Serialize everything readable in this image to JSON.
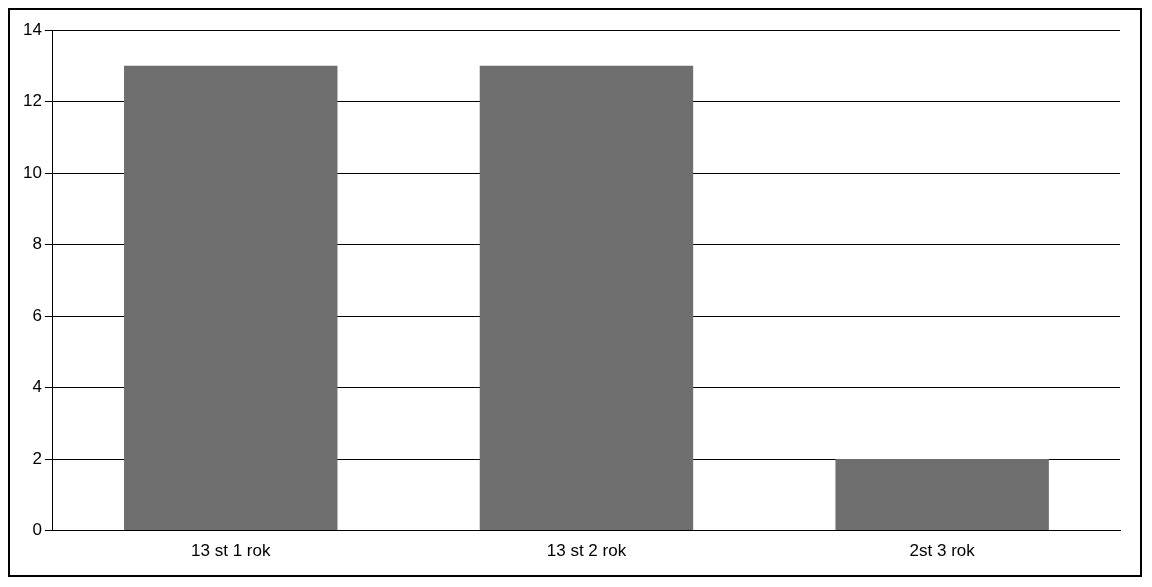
{
  "chart_data": {
    "type": "bar",
    "categories": [
      "13 st 1 rok",
      "13 st 2 rok",
      "2st 3 rok"
    ],
    "values": [
      13,
      13,
      2
    ],
    "color": "#6e6e6e",
    "ylim": [
      0,
      14
    ],
    "yticks": [
      0,
      2,
      4,
      6,
      8,
      10,
      12,
      14
    ],
    "grid": "y",
    "legend": false
  }
}
